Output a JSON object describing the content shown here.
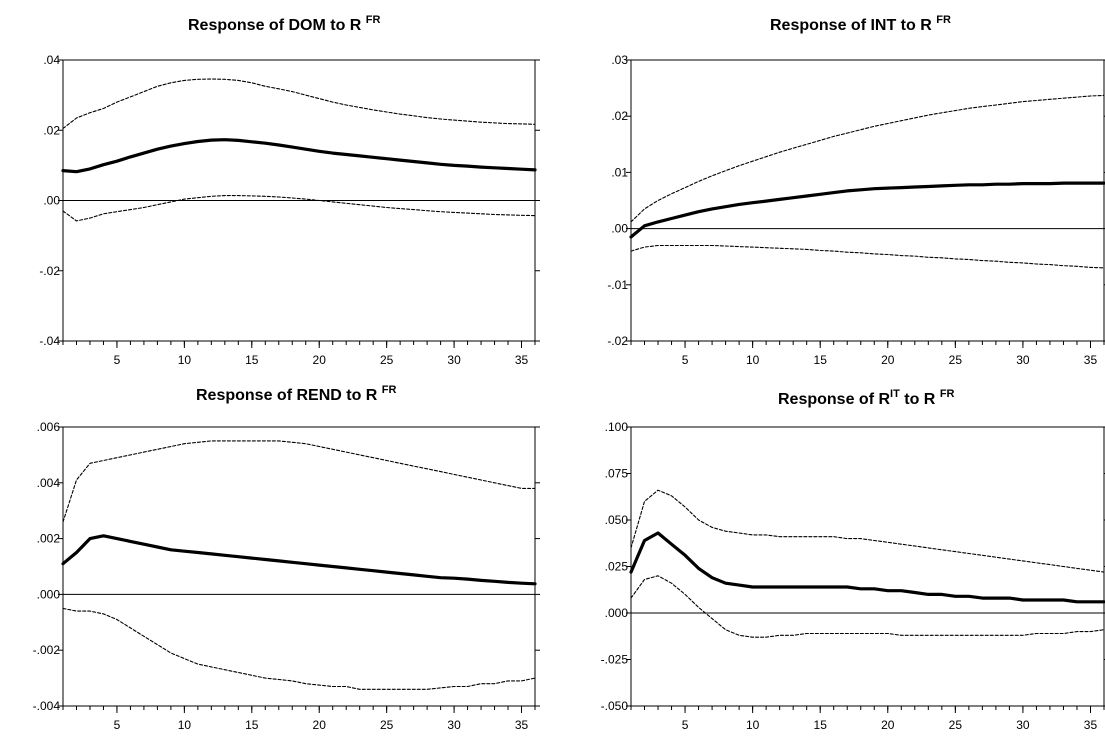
{
  "chart_data": [
    {
      "type": "line",
      "title": "Response of  DOM  to R",
      "title_sup": "FR",
      "x": [
        1,
        2,
        3,
        4,
        5,
        6,
        7,
        8,
        9,
        10,
        11,
        12,
        13,
        14,
        15,
        16,
        17,
        18,
        19,
        20,
        21,
        22,
        23,
        24,
        25,
        26,
        27,
        28,
        29,
        30,
        31,
        32,
        33,
        34,
        35,
        36
      ],
      "xticks": [
        5,
        10,
        15,
        20,
        25,
        30,
        35
      ],
      "xlim": [
        1,
        36
      ],
      "ylim": [
        -0.04,
        0.04
      ],
      "yticks": [
        -0.04,
        -0.02,
        0.0,
        0.02,
        0.04
      ],
      "ytick_labels": [
        "-.04",
        "-.02",
        ".00",
        ".02",
        ".04"
      ],
      "series": [
        {
          "values": [
            0.0085,
            0.0082,
            0.009,
            0.0102,
            0.0112,
            0.0124,
            0.0135,
            0.0146,
            0.0155,
            0.0162,
            0.0168,
            0.0172,
            0.0173,
            0.0171,
            0.0167,
            0.0163,
            0.0158,
            0.0152,
            0.0146,
            0.014,
            0.0135,
            0.0131,
            0.0127,
            0.0123,
            0.0119,
            0.0115,
            0.0111,
            0.0107,
            0.0103,
            0.01,
            0.0098,
            0.0095,
            0.0093,
            0.0091,
            0.0089,
            0.0087
          ]
        },
        {
          "values": [
            0.0205,
            0.0235,
            0.025,
            0.0262,
            0.028,
            0.0295,
            0.031,
            0.0325,
            0.0335,
            0.0342,
            0.0345,
            0.0346,
            0.0345,
            0.0342,
            0.0335,
            0.0325,
            0.0318,
            0.031,
            0.03,
            0.029,
            0.028,
            0.0272,
            0.0265,
            0.0258,
            0.0252,
            0.0246,
            0.0241,
            0.0236,
            0.0232,
            0.0229,
            0.0226,
            0.0223,
            0.0221,
            0.0219,
            0.0218,
            0.0217
          ]
        },
        {
          "values": [
            -0.003,
            -0.0058,
            -0.005,
            -0.0038,
            -0.0032,
            -0.0026,
            -0.002,
            -0.0012,
            -0.0004,
            0.0004,
            0.0008,
            0.0012,
            0.0014,
            0.0014,
            0.0013,
            0.0012,
            0.001,
            0.0007,
            0.0004,
            0.0,
            -0.0004,
            -0.0008,
            -0.0012,
            -0.0016,
            -0.002,
            -0.0023,
            -0.0026,
            -0.0029,
            -0.0032,
            -0.0034,
            -0.0036,
            -0.0038,
            -0.004,
            -0.0041,
            -0.0042,
            -0.0043
          ]
        }
      ]
    },
    {
      "type": "line",
      "title": "Response of  INT to R",
      "title_sup": "FR",
      "x": [
        1,
        2,
        3,
        4,
        5,
        6,
        7,
        8,
        9,
        10,
        11,
        12,
        13,
        14,
        15,
        16,
        17,
        18,
        19,
        20,
        21,
        22,
        23,
        24,
        25,
        26,
        27,
        28,
        29,
        30,
        31,
        32,
        33,
        34,
        35,
        36
      ],
      "xticks": [
        5,
        10,
        15,
        20,
        25,
        30,
        35
      ],
      "xlim": [
        1,
        36
      ],
      "ylim": [
        -0.02,
        0.03
      ],
      "yticks": [
        -0.02,
        -0.01,
        0.0,
        0.01,
        0.02,
        0.03
      ],
      "ytick_labels": [
        "-.02",
        "-.01",
        ".00",
        ".01",
        ".02",
        ".03"
      ],
      "series": [
        {
          "values": [
            -0.0015,
            0.0005,
            0.0012,
            0.0018,
            0.0024,
            0.003,
            0.0035,
            0.0039,
            0.0043,
            0.0046,
            0.0049,
            0.0052,
            0.0055,
            0.0058,
            0.0061,
            0.0064,
            0.0067,
            0.0069,
            0.0071,
            0.0072,
            0.0073,
            0.0074,
            0.0075,
            0.0076,
            0.0077,
            0.0078,
            0.0078,
            0.0079,
            0.0079,
            0.008,
            0.008,
            0.008,
            0.0081,
            0.0081,
            0.0081,
            0.0081
          ]
        },
        {
          "values": [
            0.0012,
            0.0035,
            0.005,
            0.0062,
            0.0073,
            0.0084,
            0.0094,
            0.0103,
            0.0112,
            0.012,
            0.0128,
            0.0136,
            0.0143,
            0.015,
            0.0157,
            0.0164,
            0.017,
            0.0176,
            0.0182,
            0.0187,
            0.0192,
            0.0197,
            0.0202,
            0.0206,
            0.021,
            0.0214,
            0.0217,
            0.022,
            0.0223,
            0.0226,
            0.0228,
            0.023,
            0.0232,
            0.0234,
            0.0236,
            0.0237
          ]
        },
        {
          "values": [
            -0.004,
            -0.0033,
            -0.003,
            -0.003,
            -0.003,
            -0.003,
            -0.003,
            -0.0031,
            -0.0032,
            -0.0033,
            -0.0034,
            -0.0035,
            -0.0036,
            -0.0037,
            -0.0039,
            -0.004,
            -0.0042,
            -0.0043,
            -0.0045,
            -0.0046,
            -0.0048,
            -0.0049,
            -0.0051,
            -0.0052,
            -0.0054,
            -0.0055,
            -0.0057,
            -0.0058,
            -0.006,
            -0.0061,
            -0.0063,
            -0.0064,
            -0.0066,
            -0.0067,
            -0.0069,
            -0.007
          ]
        }
      ]
    },
    {
      "type": "line",
      "title": "Response of  REND to R",
      "title_sup": "FR",
      "x": [
        1,
        2,
        3,
        4,
        5,
        6,
        7,
        8,
        9,
        10,
        11,
        12,
        13,
        14,
        15,
        16,
        17,
        18,
        19,
        20,
        21,
        22,
        23,
        24,
        25,
        26,
        27,
        28,
        29,
        30,
        31,
        32,
        33,
        34,
        35,
        36
      ],
      "xticks": [
        5,
        10,
        15,
        20,
        25,
        30,
        35
      ],
      "xlim": [
        1,
        36
      ],
      "ylim": [
        -0.004,
        0.006
      ],
      "yticks": [
        -0.004,
        -0.002,
        0.0,
        0.002,
        0.004,
        0.006
      ],
      "ytick_labels": [
        "-.004",
        "-.002",
        ".000",
        ".002",
        ".004",
        ".006"
      ],
      "series": [
        {
          "values": [
            0.0011,
            0.0015,
            0.002,
            0.0021,
            0.002,
            0.0019,
            0.0018,
            0.0017,
            0.0016,
            0.00155,
            0.0015,
            0.00145,
            0.0014,
            0.00135,
            0.0013,
            0.00125,
            0.0012,
            0.00115,
            0.0011,
            0.00105,
            0.001,
            0.00095,
            0.0009,
            0.00085,
            0.0008,
            0.00075,
            0.0007,
            0.00065,
            0.0006,
            0.00058,
            0.00055,
            0.0005,
            0.00047,
            0.00043,
            0.0004,
            0.00038
          ]
        },
        {
          "values": [
            0.0026,
            0.0041,
            0.0047,
            0.0048,
            0.0049,
            0.005,
            0.0051,
            0.0052,
            0.0053,
            0.0054,
            0.00545,
            0.0055,
            0.0055,
            0.0055,
            0.0055,
            0.0055,
            0.0055,
            0.00545,
            0.0054,
            0.0053,
            0.0052,
            0.0051,
            0.005,
            0.0049,
            0.0048,
            0.0047,
            0.0046,
            0.0045,
            0.0044,
            0.0043,
            0.0042,
            0.0041,
            0.004,
            0.0039,
            0.0038,
            0.0038
          ]
        },
        {
          "values": [
            -0.0005,
            -0.0006,
            -0.0006,
            -0.0007,
            -0.0009,
            -0.0012,
            -0.0015,
            -0.0018,
            -0.0021,
            -0.0023,
            -0.0025,
            -0.0026,
            -0.0027,
            -0.0028,
            -0.0029,
            -0.003,
            -0.00305,
            -0.0031,
            -0.0032,
            -0.00325,
            -0.0033,
            -0.0033,
            -0.0034,
            -0.0034,
            -0.0034,
            -0.0034,
            -0.0034,
            -0.0034,
            -0.00335,
            -0.0033,
            -0.0033,
            -0.0032,
            -0.0032,
            -0.0031,
            -0.0031,
            -0.003
          ]
        }
      ]
    },
    {
      "type": "line",
      "title": "Response of  R",
      "title_sup": "IT",
      "title_mid": "to R",
      "title_sup2": "FR",
      "x": [
        1,
        2,
        3,
        4,
        5,
        6,
        7,
        8,
        9,
        10,
        11,
        12,
        13,
        14,
        15,
        16,
        17,
        18,
        19,
        20,
        21,
        22,
        23,
        24,
        25,
        26,
        27,
        28,
        29,
        30,
        31,
        32,
        33,
        34,
        35,
        36
      ],
      "xticks": [
        5,
        10,
        15,
        20,
        25,
        30,
        35
      ],
      "xlim": [
        1,
        36
      ],
      "ylim": [
        -0.05,
        0.1
      ],
      "yticks": [
        -0.05,
        -0.025,
        0.0,
        0.025,
        0.05,
        0.075,
        0.1
      ],
      "ytick_labels": [
        "-.050",
        "-.025",
        ".000",
        ".025",
        ".050",
        ".075",
        ".100"
      ],
      "series": [
        {
          "values": [
            0.022,
            0.039,
            0.043,
            0.037,
            0.031,
            0.024,
            0.019,
            0.016,
            0.015,
            0.014,
            0.014,
            0.014,
            0.014,
            0.014,
            0.014,
            0.014,
            0.014,
            0.013,
            0.013,
            0.012,
            0.012,
            0.011,
            0.01,
            0.01,
            0.009,
            0.009,
            0.008,
            0.008,
            0.008,
            0.007,
            0.007,
            0.007,
            0.007,
            0.006,
            0.006,
            0.006
          ]
        },
        {
          "values": [
            0.035,
            0.06,
            0.066,
            0.063,
            0.057,
            0.05,
            0.046,
            0.044,
            0.043,
            0.042,
            0.042,
            0.041,
            0.041,
            0.041,
            0.041,
            0.041,
            0.04,
            0.04,
            0.039,
            0.038,
            0.037,
            0.036,
            0.035,
            0.034,
            0.033,
            0.032,
            0.031,
            0.03,
            0.029,
            0.028,
            0.027,
            0.026,
            0.025,
            0.024,
            0.023,
            0.022
          ]
        },
        {
          "values": [
            0.008,
            0.018,
            0.02,
            0.016,
            0.01,
            0.003,
            -0.003,
            -0.009,
            -0.012,
            -0.013,
            -0.013,
            -0.012,
            -0.012,
            -0.011,
            -0.011,
            -0.011,
            -0.011,
            -0.011,
            -0.011,
            -0.011,
            -0.012,
            -0.012,
            -0.012,
            -0.012,
            -0.012,
            -0.012,
            -0.012,
            -0.012,
            -0.012,
            -0.012,
            -0.011,
            -0.011,
            -0.011,
            -0.01,
            -0.01,
            -0.009
          ]
        }
      ]
    }
  ]
}
